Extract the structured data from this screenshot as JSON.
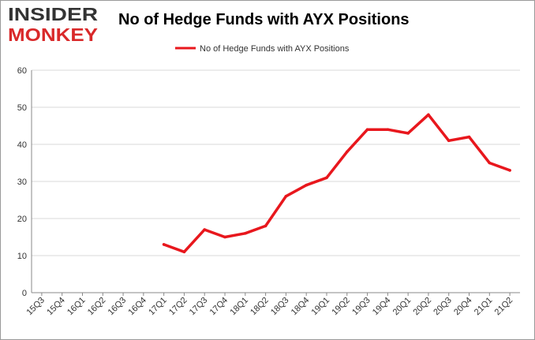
{
  "logo": {
    "line1": "INSIDER",
    "line2": "MONKEY"
  },
  "chart_data": {
    "type": "line",
    "title": "No of Hedge Funds with AYX Positions",
    "xlabel": "",
    "ylabel": "",
    "categories": [
      "15Q3",
      "15Q4",
      "16Q1",
      "16Q2",
      "16Q3",
      "16Q4",
      "17Q1",
      "17Q2",
      "17Q3",
      "17Q4",
      "18Q1",
      "18Q2",
      "18Q3",
      "18Q4",
      "19Q1",
      "19Q2",
      "19Q3",
      "19Q4",
      "20Q1",
      "20Q2",
      "20Q3",
      "20Q4",
      "21Q1",
      "21Q2"
    ],
    "series": [
      {
        "name": "No of Hedge Funds with AYX Positions",
        "values": [
          null,
          null,
          null,
          null,
          null,
          null,
          13,
          11,
          17,
          15,
          16,
          18,
          26,
          29,
          31,
          38,
          44,
          44,
          43,
          48,
          41,
          42,
          35,
          33
        ]
      }
    ],
    "ylim": [
      0,
      60
    ],
    "yticks": [
      0,
      10,
      20,
      30,
      40,
      50,
      60
    ],
    "grid": true,
    "legend": "top-center",
    "colors": {
      "line": "#e8171d",
      "grid": "#d8d8d8",
      "logo_red": "#d9292a",
      "logo_dark": "#333333"
    }
  }
}
